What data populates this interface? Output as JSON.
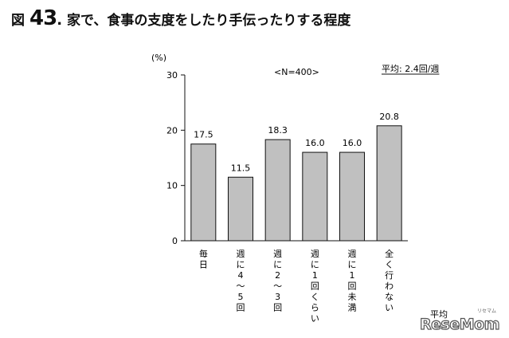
{
  "figure": {
    "prefix": "図",
    "number": "43",
    "dot": ".",
    "title": "家で、食事の支度をしたり手伝ったりする程度"
  },
  "watermark": {
    "text": "ReseMom",
    "sub": "リセマム"
  },
  "chart_data": {
    "type": "bar",
    "categories": [
      "毎日",
      "週に4〜5回",
      "週に2〜3回",
      "週に1回くらい",
      "週に1回未満",
      "全く行わない"
    ],
    "category_labels_vertical": [
      [
        "毎",
        "日"
      ],
      [
        "週",
        "に",
        "4",
        "〜",
        "5",
        "回"
      ],
      [
        "週",
        "に",
        "2",
        "〜",
        "3",
        "回"
      ],
      [
        "週",
        "に",
        "1",
        "回",
        "く",
        "ら",
        "い"
      ],
      [
        "週",
        "に",
        "1",
        "回",
        "未",
        "満"
      ],
      [
        "全",
        "く",
        "行",
        "わ",
        "な",
        "い"
      ]
    ],
    "values": [
      17.5,
      11.5,
      18.3,
      16.0,
      16.0,
      20.8
    ],
    "value_labels": [
      "17.5",
      "11.5",
      "18.3",
      "16.0",
      "16.0",
      "20.8"
    ],
    "ylim": [
      0,
      30
    ],
    "yticks": [
      0,
      10,
      20,
      30
    ],
    "ytick_labels": [
      "0",
      "10",
      "20",
      "30"
    ],
    "unit_label": "(%)",
    "sample_note": "<N=400>",
    "average_note": "平均: 2.4回/週",
    "bottom_note": "平均",
    "bar_color": "#c0c0c0",
    "grid": false,
    "legend": "none"
  }
}
